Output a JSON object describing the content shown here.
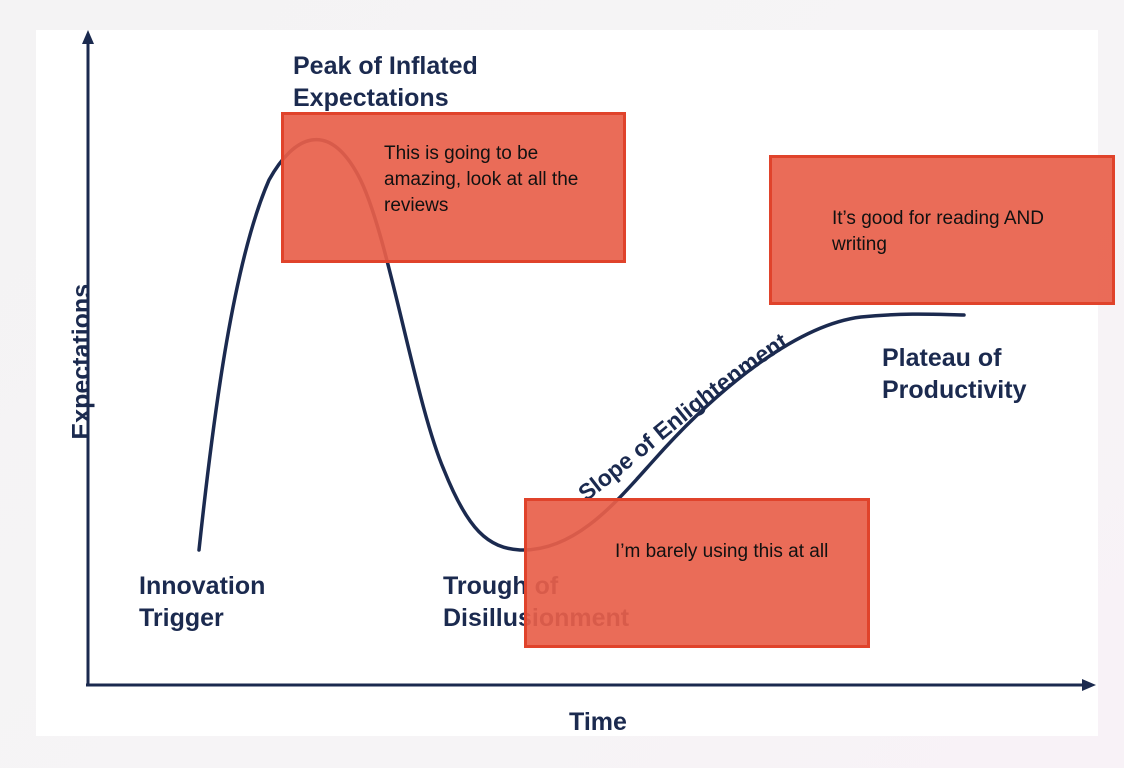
{
  "diagram": {
    "axes": {
      "y_label": "Expectations",
      "x_label": "Time"
    },
    "phases": [
      {
        "line1": "Innovation",
        "line2": "Trigger"
      },
      {
        "line1": "Peak of Inflated",
        "line2": "Expectations"
      },
      {
        "line1": "Trough of",
        "line2": "Disillusionment"
      },
      {
        "label": "Slope of Enlightenment"
      },
      {
        "line1": "Plateau of",
        "line2": "Productivity"
      }
    ],
    "colors": {
      "ink": "#1b2a4f",
      "note_fill": "#e8604a",
      "note_border": "#e0432b"
    }
  },
  "notes": [
    {
      "text": "This is going to be amazing, look at all the reviews"
    },
    {
      "text": "It’s good for reading AND writing"
    },
    {
      "text": "I’m barely using this at all"
    }
  ]
}
